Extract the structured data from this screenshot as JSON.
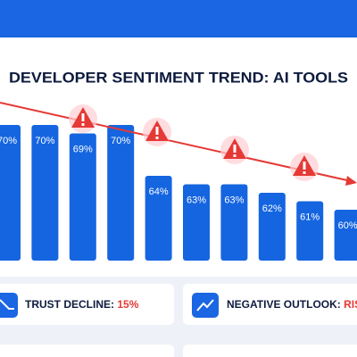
{
  "chart_data": {
    "type": "bar",
    "title": "DEVELOPER SENTIMENT TREND: AI TOOLS",
    "categories": [
      null,
      null,
      null,
      null,
      null,
      null,
      null,
      null,
      null,
      null
    ],
    "values": [
      70,
      70,
      69,
      70,
      64,
      63,
      63,
      62,
      61,
      60
    ],
    "value_labels": [
      "70%",
      "70%",
      "69%",
      "70%",
      "64%",
      "63%",
      "63%",
      "62%",
      "61%",
      "60%"
    ],
    "color": "#1565e0",
    "ylim": [
      54,
      72
    ]
  },
  "stats": [
    {
      "label": "TRUST DECLINE:",
      "value": "15%"
    },
    {
      "label": "NEGATIVE OUTLOOK:",
      "value": "RIS"
    }
  ]
}
